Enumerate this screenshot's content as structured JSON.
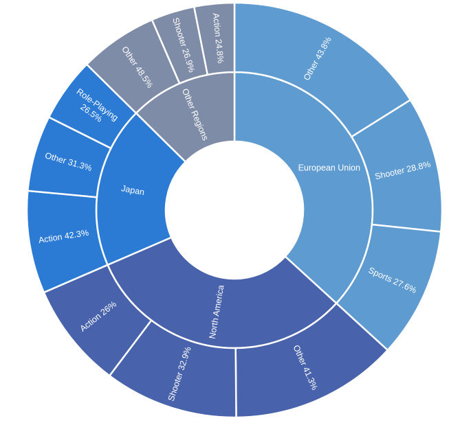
{
  "chart_data": {
    "type": "sunburst",
    "regions": [
      {
        "name": "European Union",
        "color": "#5e9bd1",
        "value": 36.8,
        "children": [
          {
            "name": "Other",
            "value": 43.8,
            "value_label": "43.8%"
          },
          {
            "name": "Shooter",
            "value": 28.8,
            "value_label": "28.8%"
          },
          {
            "name": "Sports",
            "value": 27.6,
            "value_label": "27.6%"
          }
        ]
      },
      {
        "name": "North America",
        "color": "#4863ab",
        "value": 31.7,
        "children": [
          {
            "name": "Other",
            "value": 41.3,
            "value_label": "41.3%"
          },
          {
            "name": "Shooter",
            "value": 32.9,
            "value_label": "32.9%"
          },
          {
            "name": "Action",
            "value": 26,
            "value_label": "26%"
          }
        ]
      },
      {
        "name": "Japan",
        "color": "#2b7bd5",
        "value": 18.9,
        "children": [
          {
            "name": "Action",
            "value": 42.3,
            "value_label": "42.3%"
          },
          {
            "name": "Other",
            "value": 31.3,
            "value_label": "31.3%"
          },
          {
            "name": "Role-Playing",
            "value": 26.5,
            "value_label": "26.5%"
          }
        ]
      },
      {
        "name": "Other Regions",
        "color": "#7f8ca7",
        "value": 12.6,
        "children": [
          {
            "name": "Other",
            "value": 48.5,
            "value_label": "48.5%"
          },
          {
            "name": "Shooter",
            "value": 26.9,
            "value_label": "26.9%"
          },
          {
            "name": "Action",
            "value": 24.8,
            "value_label": "24.8%"
          }
        ]
      }
    ]
  }
}
